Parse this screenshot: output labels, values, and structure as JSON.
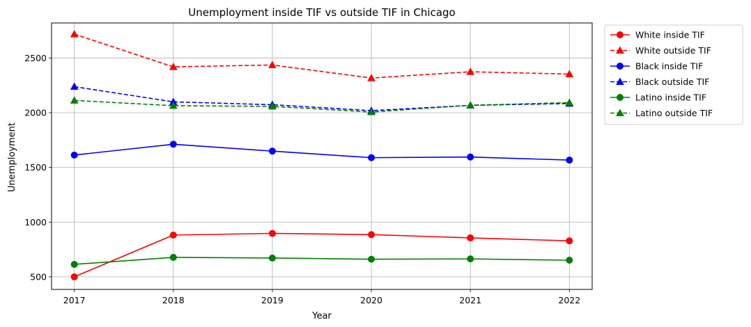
{
  "chart_data": {
    "type": "line",
    "title": "Unemployment inside TIF vs outside TIF in Chicago",
    "xlabel": "Year",
    "ylabel": "Unemployment",
    "x": [
      "2017",
      "2018",
      "2019",
      "2020",
      "2021",
      "2022"
    ],
    "xlim": [
      2016.77,
      2022.23
    ],
    "ylim": [
      385,
      2820
    ],
    "yticks": [
      "500",
      "1000",
      "1500",
      "2000",
      "2500"
    ],
    "grid": true,
    "legend_position": "outside-top-right",
    "series": [
      {
        "name": "White inside TIF",
        "color": "#ff0000",
        "dash": "solid",
        "marker": "circle",
        "values": [
          500,
          882,
          897,
          886,
          856,
          829
        ]
      },
      {
        "name": "White outside TIF",
        "color": "#ff0000",
        "dash": "dashed",
        "marker": "triangle",
        "values": [
          2718,
          2419,
          2436,
          2317,
          2374,
          2353
        ]
      },
      {
        "name": "Black inside TIF",
        "color": "#0000ff",
        "dash": "solid",
        "marker": "circle",
        "values": [
          1613,
          1712,
          1649,
          1589,
          1595,
          1567
        ]
      },
      {
        "name": "Black outside TIF",
        "color": "#0000ff",
        "dash": "dashed",
        "marker": "triangle",
        "values": [
          2238,
          2099,
          2073,
          2019,
          2067,
          2084
        ]
      },
      {
        "name": "Latino inside TIF",
        "color": "#008000",
        "dash": "solid",
        "marker": "circle",
        "values": [
          614,
          678,
          672,
          661,
          664,
          652
        ]
      },
      {
        "name": "Latino outside TIF",
        "color": "#008000",
        "dash": "dashed",
        "marker": "triangle",
        "values": [
          2112,
          2064,
          2058,
          2006,
          2068,
          2092
        ]
      }
    ]
  }
}
